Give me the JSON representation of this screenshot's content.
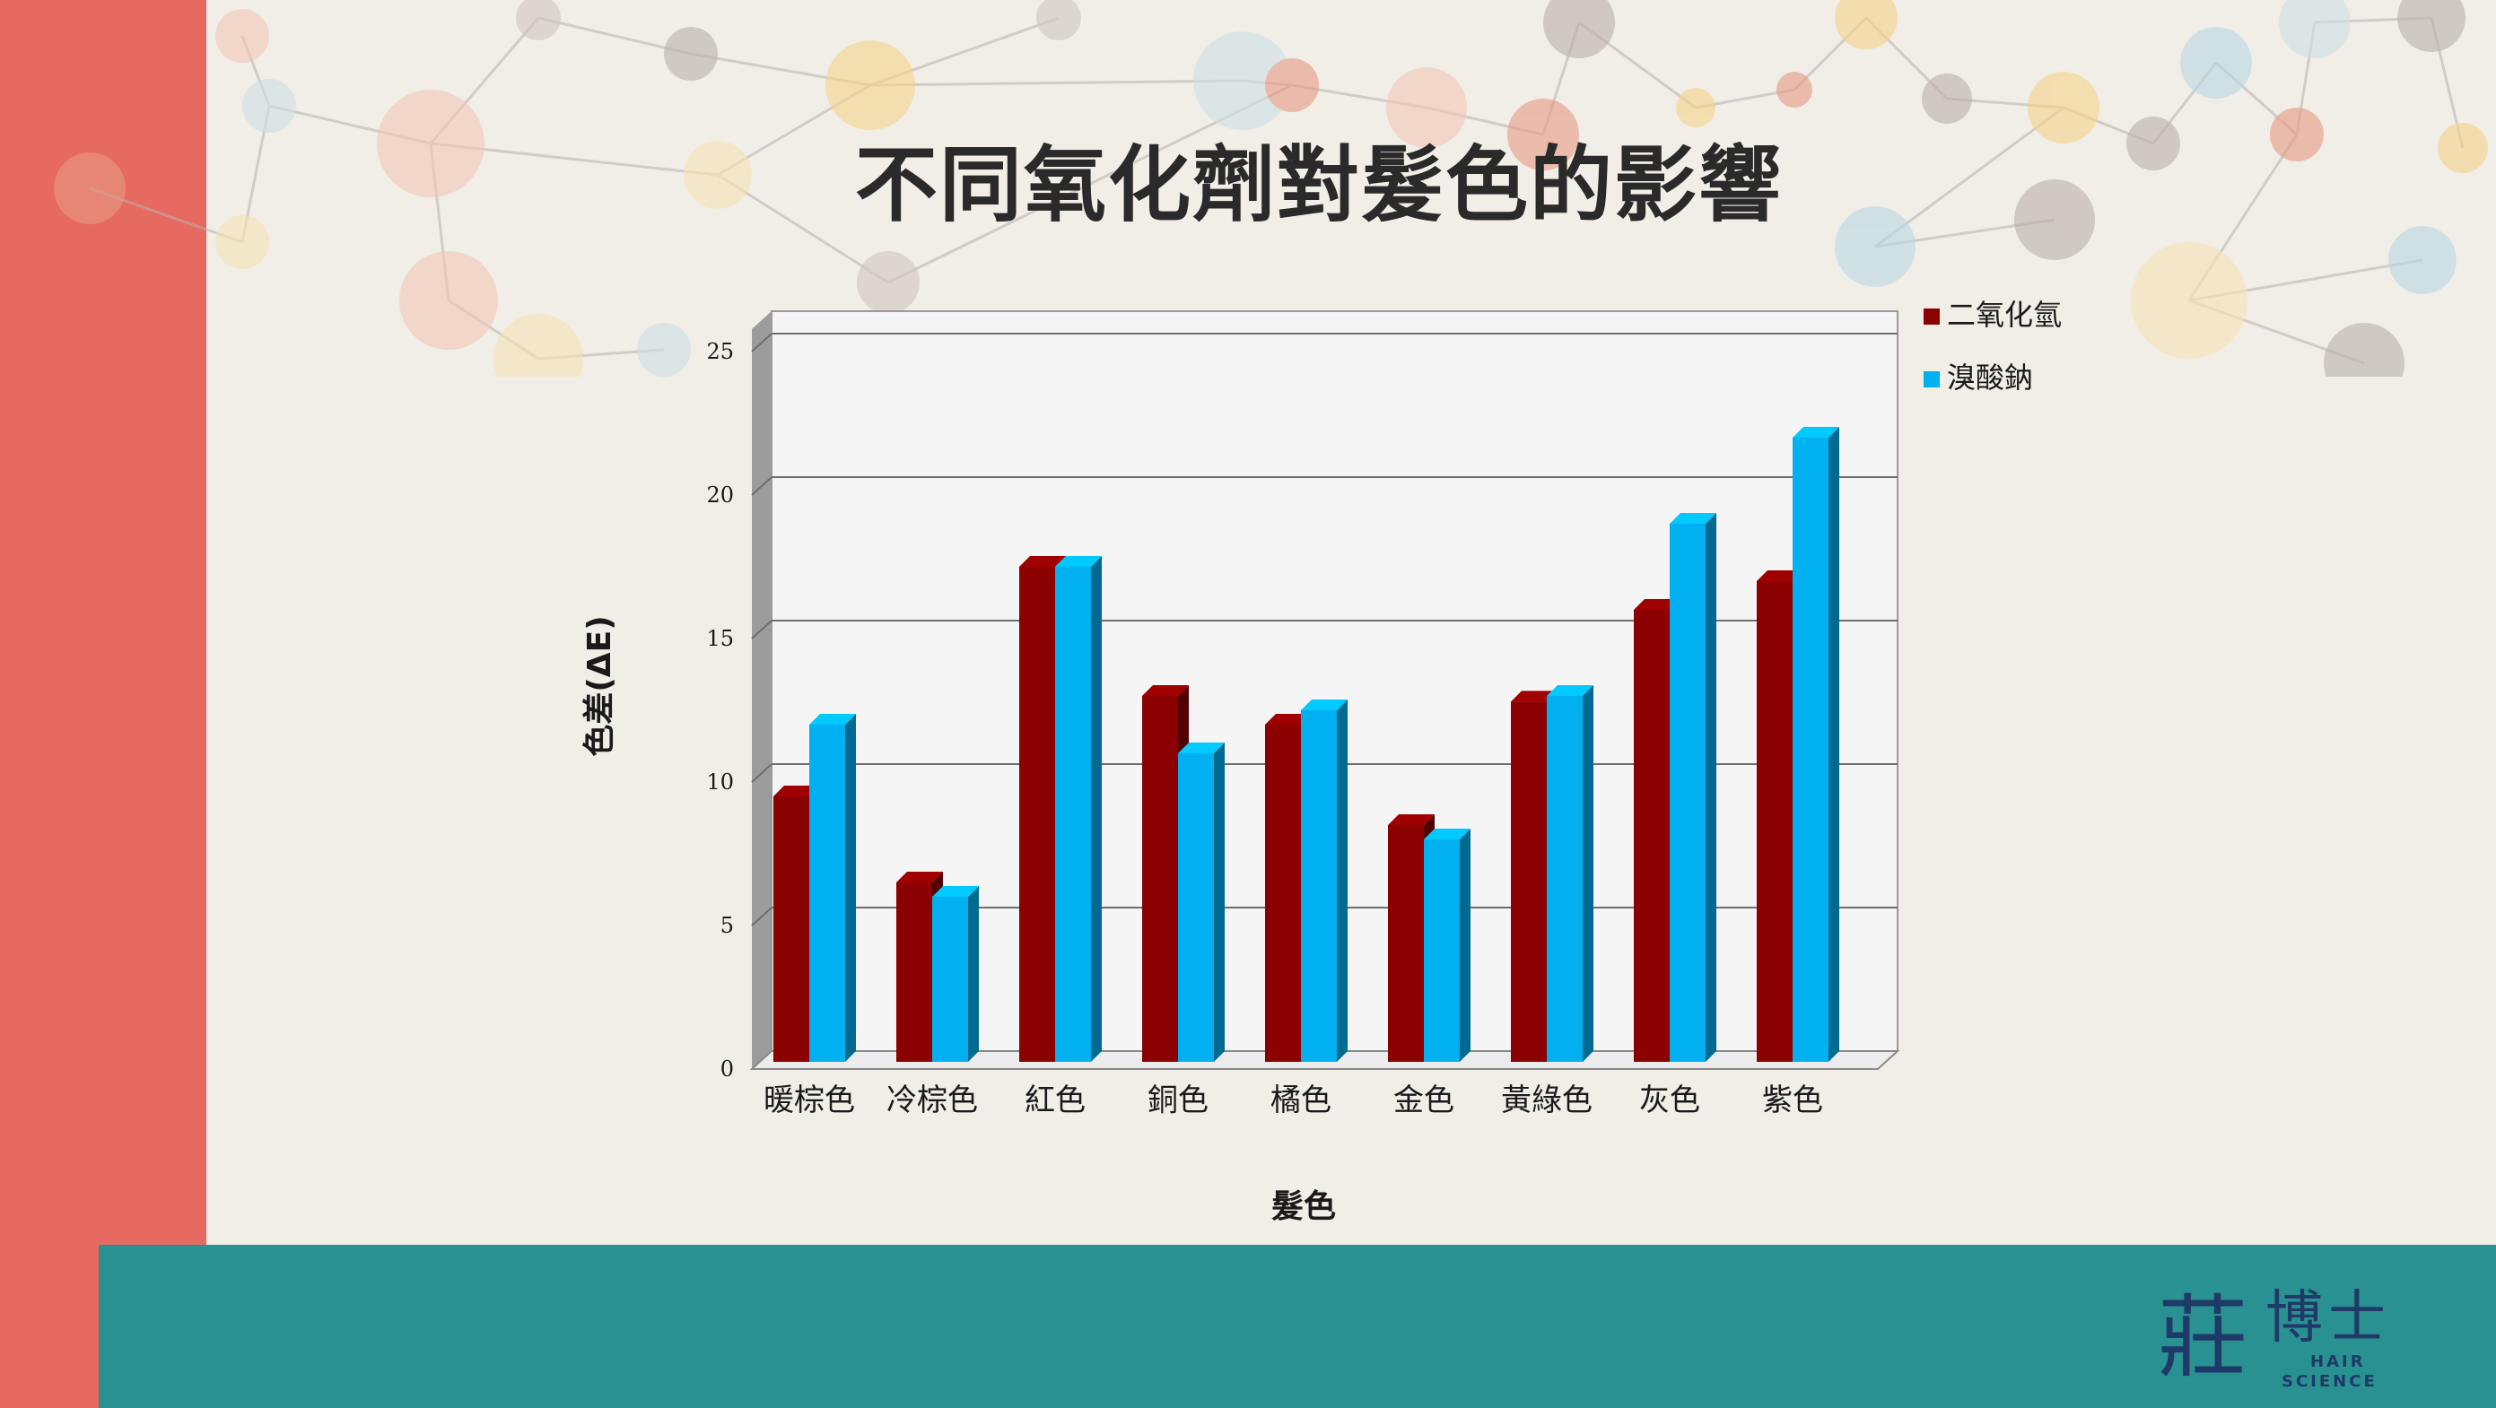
{
  "slide": {
    "title": "不同氧化劑對髮色的影響",
    "colors": {
      "left_band": "#e66a61",
      "bottom_band": "#2a9193",
      "background": "#f1ede7"
    }
  },
  "logo": {
    "main": "莊",
    "sub": "博士",
    "line1": "HAIR",
    "line2": "SCIENCE"
  },
  "chart_data": {
    "type": "bar",
    "title": "不同氧化劑對髮色的影響",
    "xlabel": "髮色",
    "ylabel": "色差(ΔE)",
    "ylim": [
      0,
      25
    ],
    "yticks": [
      0,
      5,
      10,
      15,
      20,
      25
    ],
    "categories": [
      "暖棕色",
      "冷棕色",
      "紅色",
      "銅色",
      "橘色",
      "金色",
      "黃綠色",
      "灰色",
      "紫色"
    ],
    "series": [
      {
        "name": "二氧化氫",
        "color": "#8b0000",
        "values": [
          9.5,
          6.5,
          17.5,
          13,
          12,
          8.5,
          12.8,
          16,
          17
        ]
      },
      {
        "name": "溴酸鈉",
        "color": "#00b0f0",
        "values": [
          12,
          6,
          17.5,
          11,
          12.5,
          8,
          13,
          19,
          22
        ]
      }
    ],
    "grid": true,
    "legend": "right"
  }
}
